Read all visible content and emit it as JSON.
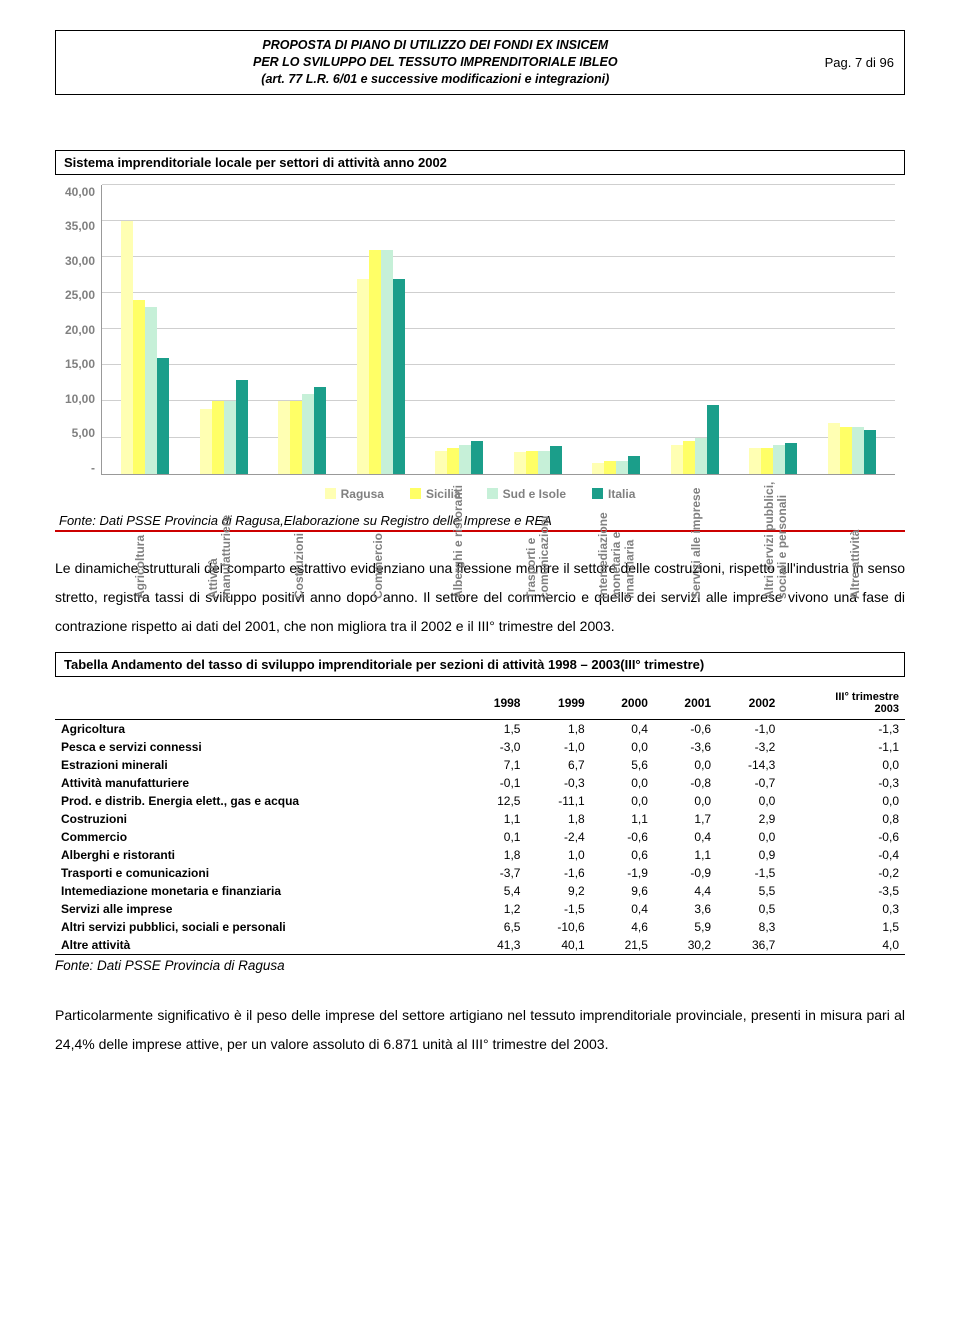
{
  "header": {
    "title_line1": "PROPOSTA DI PIANO DI UTILIZZO DEI FONDI EX INSICEM",
    "title_line2": "PER LO SVILUPPO DEL TESSUTO IMPRENDITORIALE IBLEO",
    "title_line3": "(art. 77 L.R. 6/01 e successive modificazioni e integrazioni)",
    "page": "Pag. 7 di 96"
  },
  "chart": {
    "title": "Sistema imprenditoriale locale per settori di attività anno 2002",
    "type": "bar",
    "ylim": [
      0,
      40
    ],
    "ytick_step": 5,
    "yticks": [
      "40,00",
      "35,00",
      "30,00",
      "25,00",
      "20,00",
      "15,00",
      "10,00",
      "5,00",
      "-"
    ],
    "grid_color": "#cfcfcf",
    "axis_color": "#999999",
    "label_color": "#808080",
    "series": [
      {
        "name": "Ragusa",
        "color": "#ffffb3"
      },
      {
        "name": "Sicilia",
        "color": "#ffff66"
      },
      {
        "name": "Sud e Isole",
        "color": "#c6f0d8"
      },
      {
        "name": "Italia",
        "color": "#1b9e8a"
      }
    ],
    "categories": [
      "Agricoltura",
      "Attività manufatturiere",
      "Costruzioni",
      "Commercio",
      "Alberghi e ristoranti",
      "Trasporti e comunicazioni",
      "Intemediazione monetaria e finanziaria",
      "Servizi alle imprese",
      "Altri servizi pubblici, sociali e personali",
      "Altre attività"
    ],
    "values": [
      [
        35.0,
        24.0,
        23.0,
        16.0
      ],
      [
        9.0,
        10.0,
        10.0,
        13.0
      ],
      [
        10.0,
        10.0,
        11.0,
        12.0
      ],
      [
        27.0,
        31.0,
        31.0,
        27.0
      ],
      [
        3.2,
        3.5,
        4.0,
        4.5
      ],
      [
        3.0,
        3.2,
        3.2,
        3.8
      ],
      [
        1.5,
        1.8,
        1.8,
        2.5
      ],
      [
        4.0,
        4.5,
        5.0,
        9.5
      ],
      [
        3.5,
        3.5,
        4.0,
        4.2
      ],
      [
        7.0,
        6.5,
        6.5,
        6.0
      ]
    ],
    "source": "Fonte: Dati PSSE Provincia di Ragusa,Elaborazione su Registro delle Imprese e REA"
  },
  "paragraph1": "Le dinamiche strutturali del comparto estrattivo evidenziano una flessione mentre il settore delle costruzioni, rispetto all'industria in senso stretto, registra tassi di sviluppo positivi anno dopo anno. Il settore del commercio e quello dei servizi alle imprese vivono una fase di contrazione rispetto ai dati del 2001, che non migliora tra il 2002 e il III° trimestre del 2003.",
  "table": {
    "title": "Tabella Andamento del tasso di sviluppo imprenditoriale per sezioni di attività 1998 – 2003(III° trimestre)",
    "columns": [
      "",
      "1998",
      "1999",
      "2000",
      "2001",
      "2002",
      "III° trimestre 2003"
    ],
    "rows": [
      [
        "Agricoltura",
        "1,5",
        "1,8",
        "0,4",
        "-0,6",
        "-1,0",
        "-1,3"
      ],
      [
        "Pesca e servizi connessi",
        "-3,0",
        "-1,0",
        "0,0",
        "-3,6",
        "-3,2",
        "-1,1"
      ],
      [
        "Estrazioni minerali",
        "7,1",
        "6,7",
        "5,6",
        "0,0",
        "-14,3",
        "0,0"
      ],
      [
        "Attività manufatturiere",
        "-0,1",
        "-0,3",
        "0,0",
        "-0,8",
        "-0,7",
        "-0,3"
      ],
      [
        "Prod. e distrib. Energia elett., gas e acqua",
        "12,5",
        "-11,1",
        "0,0",
        "0,0",
        "0,0",
        "0,0"
      ],
      [
        "Costruzioni",
        "1,1",
        "1,8",
        "1,1",
        "1,7",
        "2,9",
        "0,8"
      ],
      [
        "Commercio",
        "0,1",
        "-2,4",
        "-0,6",
        "0,4",
        "0,0",
        "-0,6"
      ],
      [
        "Alberghi e ristoranti",
        "1,8",
        "1,0",
        "0,6",
        "1,1",
        "0,9",
        "-0,4"
      ],
      [
        "Trasporti e comunicazioni",
        "-3,7",
        "-1,6",
        "-1,9",
        "-0,9",
        "-1,5",
        "-0,2"
      ],
      [
        "Intemediazione monetaria e finanziaria",
        "5,4",
        "9,2",
        "9,6",
        "4,4",
        "5,5",
        "-3,5"
      ],
      [
        "Servizi alle imprese",
        "1,2",
        "-1,5",
        "0,4",
        "3,6",
        "0,5",
        "0,3"
      ],
      [
        "Altri servizi pubblici, sociali e personali",
        "6,5",
        "-10,6",
        "4,6",
        "5,9",
        "8,3",
        "1,5"
      ],
      [
        "Altre attività",
        "41,3",
        "40,1",
        "21,5",
        "30,2",
        "36,7",
        "4,0"
      ]
    ],
    "source": "Fonte: Dati PSSE Provincia di Ragusa"
  },
  "paragraph2": "Particolarmente significativo è il peso delle imprese del settore artigiano nel tessuto imprenditoriale provinciale, presenti in misura pari al 24,4% delle imprese attive, per un valore assoluto di 6.871 unità al III° trimestre del 2003."
}
